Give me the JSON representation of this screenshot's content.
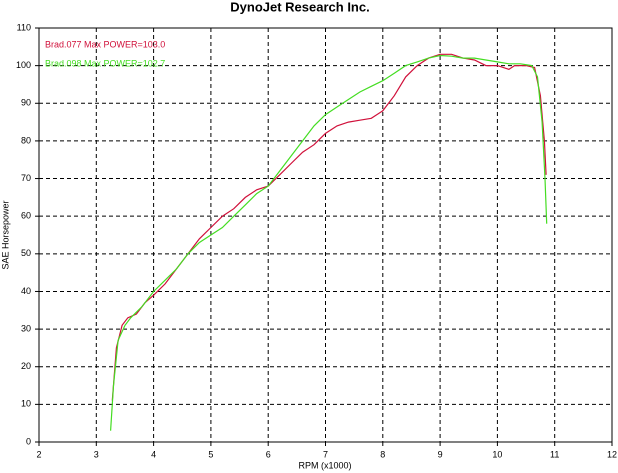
{
  "chart_data": {
    "type": "line",
    "title": "DynoJet Research Inc.",
    "x_label": "RPM (x1000)",
    "y_label": "SAE Horsepower",
    "xlim": [
      2,
      12
    ],
    "xticks": [
      2,
      3,
      4,
      5,
      6,
      7,
      8,
      9,
      10,
      11,
      12
    ],
    "ylim": [
      0,
      110
    ],
    "yticks": [
      0,
      10,
      20,
      30,
      40,
      50,
      60,
      70,
      80,
      90,
      100,
      110
    ],
    "grid": true,
    "legend": "top-left",
    "series": [
      {
        "name": "Brad.077  Max POWER=103.0",
        "color": "#d0103a",
        "x": [
          3.28,
          3.35,
          3.45,
          3.55,
          3.7,
          3.85,
          4.0,
          4.2,
          4.4,
          4.6,
          4.8,
          5.0,
          5.2,
          5.4,
          5.6,
          5.8,
          6.0,
          6.2,
          6.4,
          6.6,
          6.8,
          7.0,
          7.2,
          7.4,
          7.6,
          7.8,
          8.0,
          8.2,
          8.4,
          8.6,
          8.8,
          9.0,
          9.2,
          9.4,
          9.6,
          9.8,
          10.0,
          10.2,
          10.3,
          10.5,
          10.65,
          10.75,
          10.82,
          10.85
        ],
        "values": [
          11,
          25,
          31,
          33,
          34,
          37,
          39,
          42,
          46,
          50,
          54,
          57,
          60,
          62,
          65,
          67,
          68,
          71,
          74,
          77,
          79,
          82,
          84,
          85,
          85.5,
          86,
          88,
          92,
          97,
          100,
          102,
          103,
          103,
          102,
          101.5,
          100,
          100,
          99,
          100,
          100,
          99.5,
          92,
          80,
          71
        ]
      },
      {
        "name": "Brad.098  Max POWER=102.7",
        "color": "#44dd22",
        "x": [
          3.25,
          3.3,
          3.38,
          3.5,
          3.6,
          3.8,
          4.0,
          4.2,
          4.4,
          4.6,
          4.8,
          5.0,
          5.2,
          5.4,
          5.6,
          5.8,
          6.0,
          6.2,
          6.4,
          6.6,
          6.8,
          7.0,
          7.2,
          7.4,
          7.6,
          7.8,
          8.0,
          8.2,
          8.4,
          8.6,
          8.8,
          9.0,
          9.2,
          9.4,
          9.6,
          9.8,
          10.0,
          10.2,
          10.4,
          10.6,
          10.7,
          10.78,
          10.83,
          10.86
        ],
        "values": [
          3,
          15,
          27,
          31,
          33,
          36,
          40,
          43,
          46,
          50,
          53,
          55,
          57,
          60,
          63,
          66,
          68,
          72,
          76,
          80,
          84,
          87,
          89,
          91,
          93,
          94.5,
          96,
          98,
          100,
          101,
          102,
          102.7,
          102.5,
          102,
          102,
          101.5,
          101,
          100.5,
          100.5,
          100,
          97,
          85,
          70,
          58
        ]
      }
    ]
  }
}
